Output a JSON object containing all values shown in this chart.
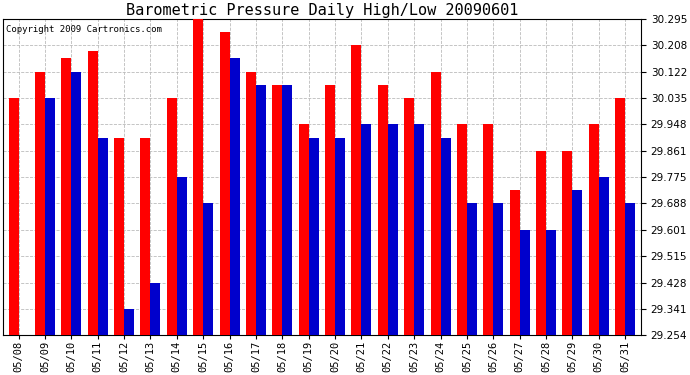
{
  "title": "Barometric Pressure Daily High/Low 20090601",
  "copyright": "Copyright 2009 Cartronics.com",
  "dates": [
    "05/08",
    "05/09",
    "05/10",
    "05/11",
    "05/12",
    "05/13",
    "05/14",
    "05/15",
    "05/16",
    "05/17",
    "05/18",
    "05/19",
    "05/20",
    "05/21",
    "05/22",
    "05/23",
    "05/24",
    "05/25",
    "05/26",
    "05/27",
    "05/28",
    "05/29",
    "05/30",
    "05/31"
  ],
  "highs": [
    30.035,
    30.122,
    30.165,
    30.188,
    29.905,
    29.905,
    30.035,
    30.295,
    30.252,
    30.122,
    30.078,
    29.948,
    30.078,
    30.208,
    30.078,
    30.035,
    30.122,
    29.948,
    29.948,
    29.731,
    29.861,
    29.861,
    29.948,
    30.035
  ],
  "lows": [
    29.254,
    30.035,
    30.122,
    29.905,
    29.341,
    29.428,
    29.775,
    29.688,
    30.165,
    30.078,
    30.078,
    29.905,
    29.905,
    29.948,
    29.948,
    29.948,
    29.905,
    29.688,
    29.688,
    29.601,
    29.601,
    29.731,
    29.775,
    29.688
  ],
  "bar_width": 0.38,
  "high_color": "#ff0000",
  "low_color": "#0000cc",
  "bg_color": "#ffffff",
  "grid_color": "#bbbbbb",
  "ymin": 29.254,
  "ymax": 30.295,
  "yticks": [
    29.254,
    29.341,
    29.428,
    29.515,
    29.601,
    29.688,
    29.775,
    29.861,
    29.948,
    30.035,
    30.122,
    30.208,
    30.295
  ],
  "title_fontsize": 11,
  "tick_fontsize": 7.5,
  "copyright_fontsize": 6.5
}
